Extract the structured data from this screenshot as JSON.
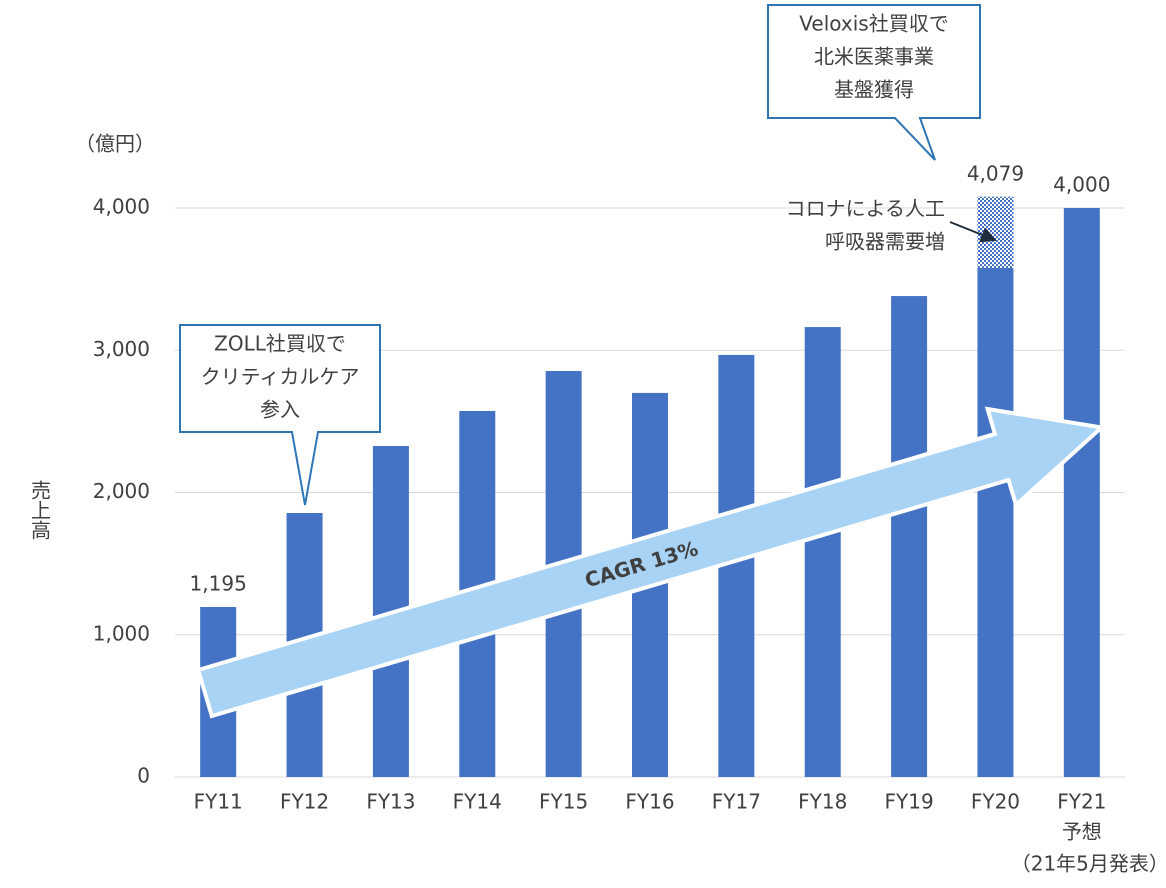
{
  "chart_data": {
    "type": "bar",
    "unit_label": "（億円）",
    "y_axis_label": "売上高",
    "categories": [
      "FY11",
      "FY12",
      "FY13",
      "FY14",
      "FY15",
      "FY16",
      "FY17",
      "FY18",
      "FY19",
      "FY20",
      "FY21"
    ],
    "forecast_note": [
      "予想",
      "（21年5月発表）"
    ],
    "series": [
      {
        "name": "売上高",
        "color": "#4472c4",
        "values": [
          1195,
          1856,
          2327,
          2573,
          2854,
          2700,
          2967,
          3163,
          3381,
          4079,
          4000
        ],
        "value_labels": [
          "1,195",
          null,
          null,
          null,
          null,
          null,
          null,
          null,
          null,
          "4,079",
          "4,000"
        ]
      }
    ],
    "highlight": {
      "category": "FY20",
      "from": 3578,
      "to": 4079,
      "lines": [
        "コロナによる人工",
        "呼吸器需要増"
      ]
    },
    "callouts": [
      {
        "category": "FY12",
        "lines": [
          "ZOLL社買収で",
          "クリティカルケア",
          "参入"
        ]
      },
      {
        "category": "FY20",
        "lines": [
          "Veloxis社買収で",
          "北米医薬事業",
          "基盤獲得"
        ]
      }
    ],
    "arrow_label": "CAGR 13%",
    "ylim": [
      0,
      4000
    ],
    "yticks": [
      0,
      {
        "value": 1000,
        "label": "1,000"
      },
      {
        "value": 2000,
        "label": "2,000"
      },
      {
        "value": 3000,
        "label": "3,000"
      },
      {
        "value": 4000,
        "label": "4,000"
      }
    ],
    "grid": true
  }
}
